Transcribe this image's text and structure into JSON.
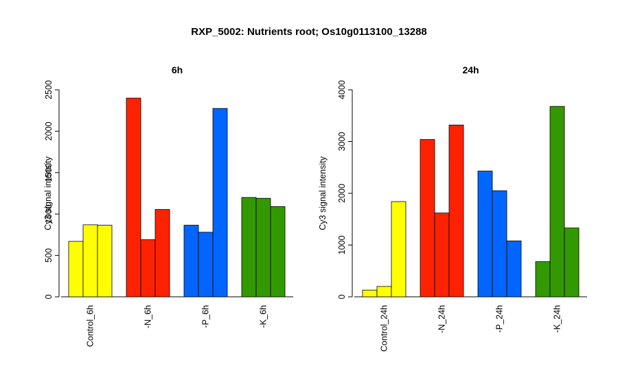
{
  "page": {
    "title": "RXP_5002: Nutrients root; Os10g0113100_13288"
  },
  "chart_data": [
    {
      "type": "bar",
      "title": "6h",
      "ylabel": "Cy3 signal intensity",
      "xlabel": "",
      "ylim": [
        0,
        2500
      ],
      "yticks": [
        0,
        500,
        1000,
        1500,
        2000,
        2500
      ],
      "categories": [
        "Control_6h",
        "-N_6h",
        "-P_6h",
        "-K_6h"
      ],
      "colors": [
        "#ffff00",
        "#ff2200",
        "#0066ff",
        "#339900"
      ],
      "values": [
        [
          670,
          870,
          865
        ],
        [
          2400,
          690,
          1055
        ],
        [
          865,
          780,
          2275
        ],
        [
          1200,
          1190,
          1090
        ]
      ],
      "grid": false,
      "legend": "none"
    },
    {
      "type": "bar",
      "title": "24h",
      "ylabel": "Cy3 signal intensity",
      "xlabel": "",
      "ylim": [
        0,
        4000
      ],
      "yticks": [
        0,
        1000,
        2000,
        3000,
        4000
      ],
      "categories": [
        "Control_24h",
        "-N_24h",
        "-P_24h",
        "-K_24h"
      ],
      "colors": [
        "#ffff00",
        "#ff2200",
        "#0066ff",
        "#339900"
      ],
      "values": [
        [
          130,
          200,
          1840
        ],
        [
          3040,
          1620,
          3320
        ],
        [
          2430,
          2050,
          1080
        ],
        [
          680,
          3680,
          1330
        ]
      ],
      "grid": false,
      "legend": "none"
    }
  ]
}
